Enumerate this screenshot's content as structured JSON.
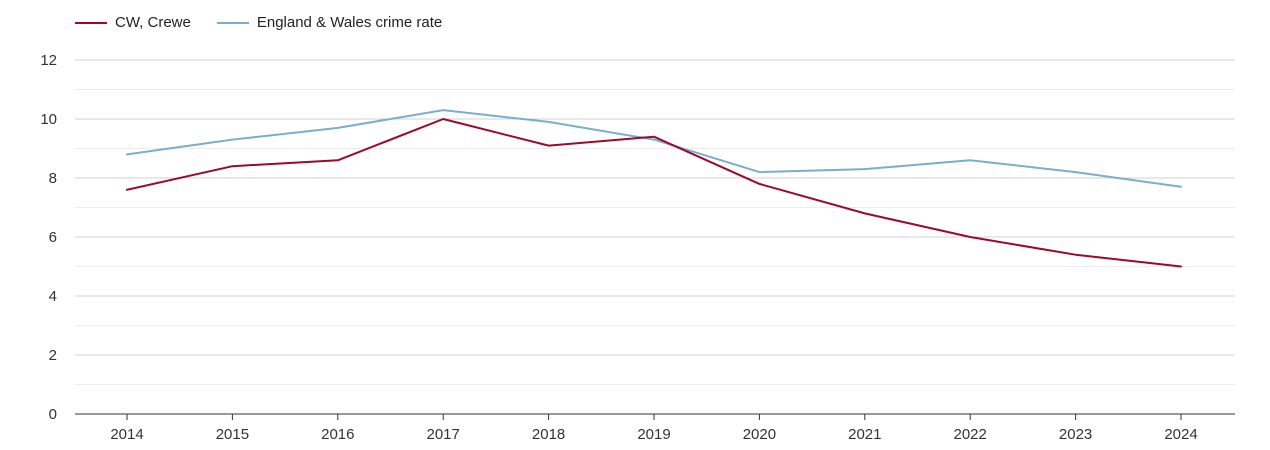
{
  "chart_data": {
    "type": "line",
    "title": "",
    "xlabel": "",
    "ylabel": "",
    "x": [
      "2014",
      "2015",
      "2016",
      "2017",
      "2018",
      "2019",
      "2020",
      "2021",
      "2022",
      "2023",
      "2024"
    ],
    "ylim": [
      0,
      12
    ],
    "yticks": [
      0,
      2,
      4,
      6,
      8,
      10,
      12
    ],
    "grid": true,
    "legend_position": "top-left",
    "series": [
      {
        "name": "CW, Crewe",
        "color": "#9b0a2b",
        "values": [
          7.6,
          8.4,
          8.6,
          10.0,
          9.1,
          9.4,
          7.8,
          6.8,
          6.0,
          5.4,
          5.0
        ]
      },
      {
        "name": "England & Wales crime rate",
        "color": "#7aaecc",
        "values": [
          8.8,
          9.3,
          9.7,
          10.3,
          9.9,
          9.3,
          8.2,
          8.3,
          8.6,
          8.2,
          7.7
        ]
      }
    ]
  }
}
